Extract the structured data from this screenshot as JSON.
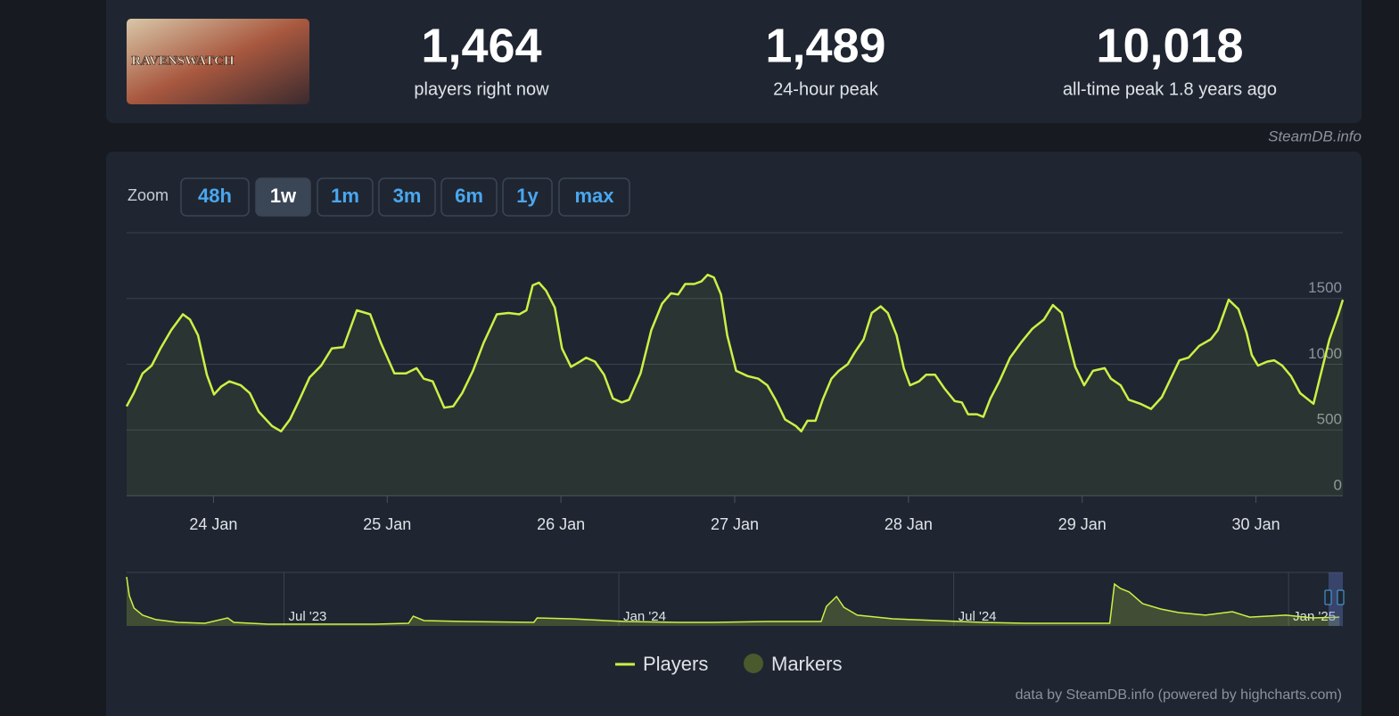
{
  "header": {
    "logo": "RAVENSWATCH",
    "stats": [
      {
        "value": "1,464",
        "label": "players right now"
      },
      {
        "value": "1,489",
        "label": "24-hour peak"
      },
      {
        "value": "10,018",
        "label": "all-time peak 1.8 years ago"
      }
    ],
    "source": "SteamDB.info"
  },
  "zoom": {
    "label": "Zoom",
    "options": [
      "48h",
      "1w",
      "1m",
      "3m",
      "6m",
      "1y",
      "max"
    ],
    "active": 1
  },
  "credit": "data by SteamDB.info (powered by highcharts.com)",
  "chart_data": [
    {
      "type": "line",
      "x": [
        23.5,
        23.541,
        23.592,
        23.644,
        23.695,
        23.757,
        23.824,
        23.865,
        23.911,
        23.962,
        24.003,
        24.044,
        24.091,
        24.157,
        24.209,
        24.26,
        24.337,
        24.389,
        24.44,
        24.491,
        24.553,
        24.62,
        24.681,
        24.748,
        24.825,
        24.902,
        24.964,
        25.041,
        25.108,
        25.169,
        25.21,
        25.262,
        25.328,
        25.38,
        25.431,
        25.493,
        25.554,
        25.631,
        25.698,
        25.76,
        25.801,
        25.837,
        25.873,
        25.914,
        25.965,
        26.006,
        26.058,
        26.109,
        26.145,
        26.196,
        26.248,
        26.299,
        26.35,
        26.392,
        26.458,
        26.52,
        26.582,
        26.633,
        26.674,
        26.715,
        26.767,
        26.808,
        26.844,
        26.88,
        26.921,
        26.957,
        27.008,
        27.075,
        27.136,
        27.188,
        27.239,
        27.29,
        27.352,
        27.383,
        27.419,
        27.465,
        27.506,
        27.557,
        27.599,
        27.65,
        27.691,
        27.742,
        27.789,
        27.84,
        27.881,
        27.932,
        27.973,
        28.009,
        28.061,
        28.102,
        28.153,
        28.205,
        28.266,
        28.307,
        28.343,
        28.395,
        28.431,
        28.472,
        28.523,
        28.585,
        28.651,
        28.713,
        28.78,
        28.831,
        28.882,
        28.918,
        28.96,
        29.011,
        29.062,
        29.129,
        29.165,
        29.221,
        29.268,
        29.334,
        29.396,
        29.458,
        29.509,
        29.56,
        29.612,
        29.673,
        29.74,
        29.781,
        29.843,
        29.899,
        29.946,
        29.976,
        30.012,
        30.064,
        30.105,
        30.151,
        30.202,
        30.254,
        30.331,
        30.372,
        30.423,
        30.474,
        30.5
      ],
      "series": [
        {
          "name": "Players",
          "color": "#cdf046",
          "values": [
            680,
            780,
            930,
            990,
            1120,
            1260,
            1380,
            1340,
            1220,
            920,
            770,
            830,
            870,
            840,
            780,
            640,
            530,
            490,
            580,
            720,
            900,
            990,
            1120,
            1130,
            1410,
            1380,
            1160,
            930,
            930,
            970,
            890,
            870,
            670,
            680,
            780,
            950,
            1160,
            1380,
            1390,
            1380,
            1410,
            1600,
            1620,
            1560,
            1430,
            1120,
            980,
            1020,
            1050,
            1020,
            920,
            740,
            710,
            730,
            930,
            1260,
            1460,
            1540,
            1530,
            1610,
            1610,
            1630,
            1680,
            1660,
            1530,
            1220,
            950,
            910,
            890,
            840,
            720,
            580,
            530,
            490,
            570,
            570,
            730,
            890,
            950,
            1000,
            1090,
            1190,
            1390,
            1440,
            1390,
            1220,
            970,
            840,
            870,
            920,
            920,
            820,
            720,
            710,
            620,
            620,
            600,
            740,
            870,
            1050,
            1170,
            1270,
            1340,
            1450,
            1390,
            1200,
            980,
            840,
            950,
            970,
            890,
            840,
            730,
            700,
            660,
            750,
            890,
            1030,
            1050,
            1140,
            1190,
            1260,
            1490,
            1420,
            1240,
            1070,
            990,
            1020,
            1030,
            990,
            910,
            780,
            700,
            920,
            1190,
            1380,
            1490
          ]
        }
      ],
      "markers": {
        "name": "Markers",
        "color": "#4a5a2c"
      },
      "xlim": [
        23.5,
        30.5
      ],
      "xticks": [
        {
          "value": 24,
          "label": "24 Jan"
        },
        {
          "value": 25,
          "label": "25 Jan"
        },
        {
          "value": 26,
          "label": "26 Jan"
        },
        {
          "value": 27,
          "label": "27 Jan"
        },
        {
          "value": 28,
          "label": "28 Jan"
        },
        {
          "value": 29,
          "label": "29 Jan"
        },
        {
          "value": 30,
          "label": "30 Jan"
        }
      ],
      "ylim": [
        0,
        2000
      ],
      "yticks": [
        0,
        500,
        1000,
        1500
      ],
      "grid": true
    },
    {
      "type": "area",
      "x": [
        2023.265,
        2023.269,
        2023.276,
        2023.289,
        2023.309,
        2023.342,
        2023.382,
        2023.416,
        2023.425,
        2023.476,
        2023.542,
        2023.636,
        2023.686,
        2023.693,
        2023.709,
        2023.769,
        2023.873,
        2023.878,
        2023.929,
        2024.009,
        2024.089,
        2024.142,
        2024.222,
        2024.302,
        2024.31,
        2024.325,
        2024.336,
        2024.356,
        2024.409,
        2024.476,
        2024.542,
        2024.609,
        2024.676,
        2024.733,
        2024.74,
        2024.749,
        2024.762,
        2024.782,
        2024.809,
        2024.836,
        2024.876,
        2024.916,
        2024.942,
        2024.996,
        2025.036,
        2025.076
      ],
      "values": [
        10000,
        6200,
        3650,
        2200,
        1300,
        730,
        550,
        1640,
        730,
        360,
        360,
        360,
        550,
        2000,
        1100,
        910,
        730,
        1640,
        1460,
        910,
        730,
        730,
        910,
        910,
        4000,
        6000,
        3800,
        2200,
        1460,
        1100,
        730,
        550,
        550,
        550,
        8550,
        7640,
        6920,
        4550,
        3460,
        2730,
        2200,
        2900,
        1800,
        2200,
        1640,
        1800
      ],
      "color": "#cdf046",
      "xlim": [
        2023.265,
        2025.081
      ],
      "xticks": [
        {
          "value": 2023.5,
          "label": "Jul '23"
        },
        {
          "value": 2024,
          "label": "Jan '24"
        },
        {
          "value": 2024.5,
          "label": "Jul '24"
        },
        {
          "value": 2025,
          "label": "Jan '25"
        }
      ]
    }
  ]
}
